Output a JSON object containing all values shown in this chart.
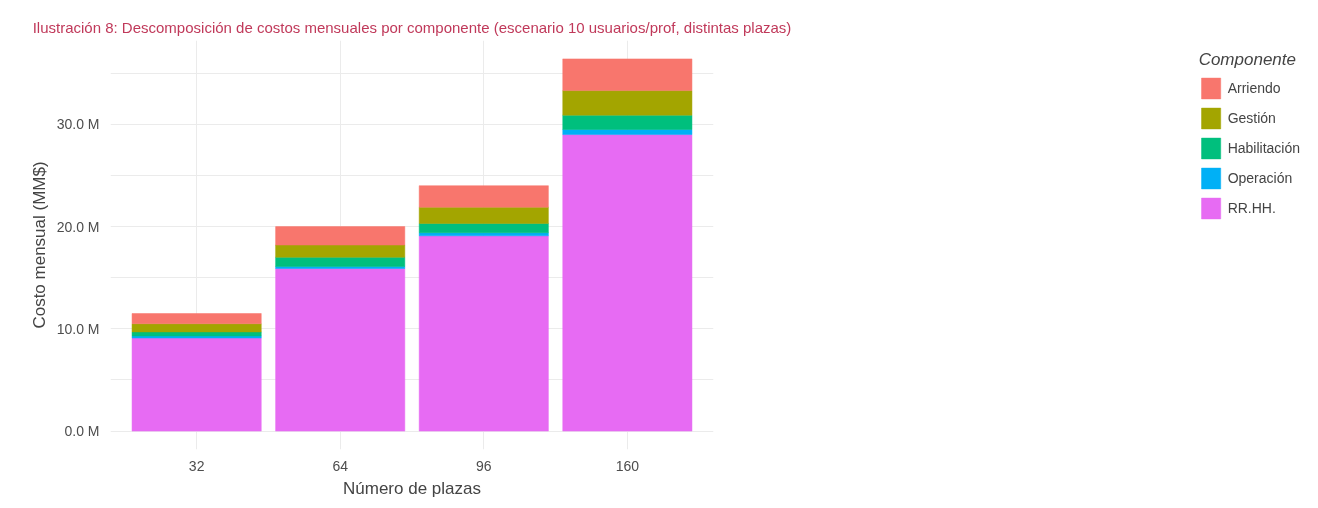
{
  "chart_data": {
    "type": "bar",
    "stacked": true,
    "title": "Ilustración 8: Descomposición de costos mensuales por componente (escenario 10 usuarios/prof, distintas plazas)",
    "xlabel": "Número de plazas",
    "ylabel": "Costo mensual (MM$)",
    "legend_title": "Componente",
    "categories": [
      "32",
      "64",
      "96",
      "160"
    ],
    "series": [
      {
        "name": "RR.HH.",
        "color": "#e76bf3",
        "values": [
          9.1,
          15.9,
          19.1,
          29.0
        ]
      },
      {
        "name": "Operación",
        "color": "#00b0f6",
        "values": [
          0.2,
          0.2,
          0.3,
          0.5
        ]
      },
      {
        "name": "Habilitación",
        "color": "#00bf7d",
        "values": [
          0.4,
          0.9,
          0.9,
          1.4
        ]
      },
      {
        "name": "Gestión",
        "color": "#a3a500",
        "values": [
          0.8,
          1.2,
          1.6,
          2.4
        ]
      },
      {
        "name": "Arriendo",
        "color": "#f8766d",
        "values": [
          1.0,
          1.8,
          2.1,
          3.1
        ]
      }
    ],
    "ylim": [
      -1.8,
      38.2
    ],
    "yticks": [
      {
        "value": 0,
        "label": "0.0 M"
      },
      {
        "value": 5,
        "label": null
      },
      {
        "value": 10,
        "label": "10.0 M"
      },
      {
        "value": 15,
        "label": null
      },
      {
        "value": 20,
        "label": "20.0 M"
      },
      {
        "value": 25,
        "label": null
      },
      {
        "value": 30,
        "label": "30.0 M"
      },
      {
        "value": 35,
        "label": null
      }
    ],
    "grid": true,
    "legend": "right"
  }
}
